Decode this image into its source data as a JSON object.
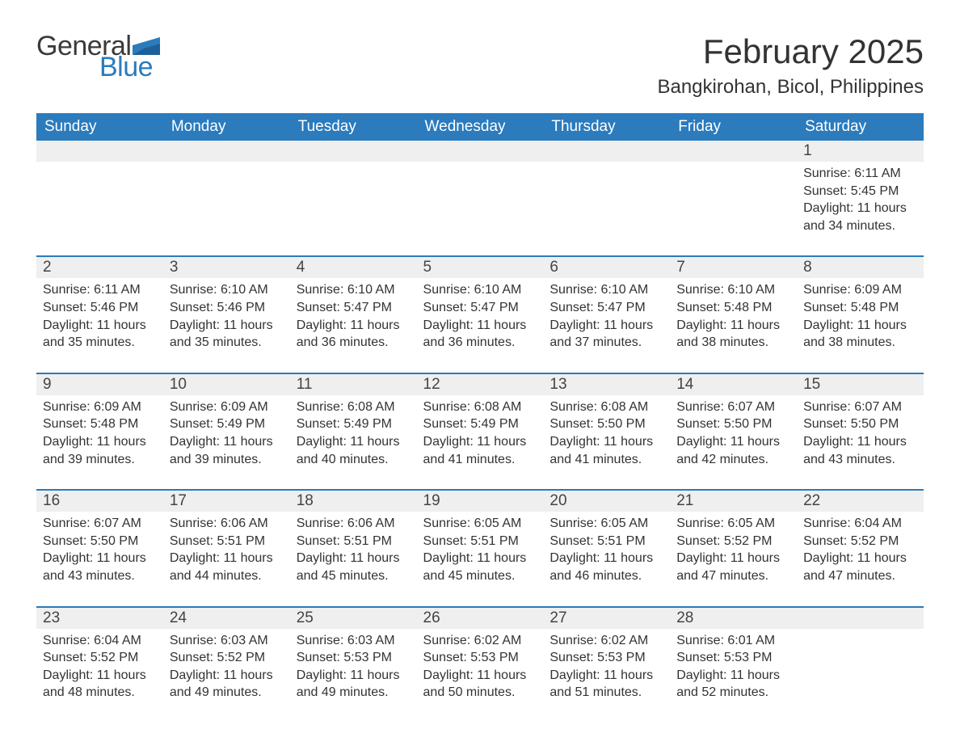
{
  "logo": {
    "general": "General",
    "blue": "Blue"
  },
  "header": {
    "month_title": "February 2025",
    "location": "Bangkirohan, Bicol, Philippines"
  },
  "colors": {
    "header_bg": "#2b7bbd",
    "header_text": "#ffffff",
    "daynum_bg": "#efefef",
    "divider": "#2b7bbd",
    "text": "#333333",
    "background": "#ffffff"
  },
  "day_headers": [
    "Sunday",
    "Monday",
    "Tuesday",
    "Wednesday",
    "Thursday",
    "Friday",
    "Saturday"
  ],
  "weeks": [
    [
      null,
      null,
      null,
      null,
      null,
      null,
      {
        "n": "1",
        "sr": "Sunrise: 6:11 AM",
        "ss": "Sunset: 5:45 PM",
        "dl": "Daylight: 11 hours and 34 minutes."
      }
    ],
    [
      {
        "n": "2",
        "sr": "Sunrise: 6:11 AM",
        "ss": "Sunset: 5:46 PM",
        "dl": "Daylight: 11 hours and 35 minutes."
      },
      {
        "n": "3",
        "sr": "Sunrise: 6:10 AM",
        "ss": "Sunset: 5:46 PM",
        "dl": "Daylight: 11 hours and 35 minutes."
      },
      {
        "n": "4",
        "sr": "Sunrise: 6:10 AM",
        "ss": "Sunset: 5:47 PM",
        "dl": "Daylight: 11 hours and 36 minutes."
      },
      {
        "n": "5",
        "sr": "Sunrise: 6:10 AM",
        "ss": "Sunset: 5:47 PM",
        "dl": "Daylight: 11 hours and 36 minutes."
      },
      {
        "n": "6",
        "sr": "Sunrise: 6:10 AM",
        "ss": "Sunset: 5:47 PM",
        "dl": "Daylight: 11 hours and 37 minutes."
      },
      {
        "n": "7",
        "sr": "Sunrise: 6:10 AM",
        "ss": "Sunset: 5:48 PM",
        "dl": "Daylight: 11 hours and 38 minutes."
      },
      {
        "n": "8",
        "sr": "Sunrise: 6:09 AM",
        "ss": "Sunset: 5:48 PM",
        "dl": "Daylight: 11 hours and 38 minutes."
      }
    ],
    [
      {
        "n": "9",
        "sr": "Sunrise: 6:09 AM",
        "ss": "Sunset: 5:48 PM",
        "dl": "Daylight: 11 hours and 39 minutes."
      },
      {
        "n": "10",
        "sr": "Sunrise: 6:09 AM",
        "ss": "Sunset: 5:49 PM",
        "dl": "Daylight: 11 hours and 39 minutes."
      },
      {
        "n": "11",
        "sr": "Sunrise: 6:08 AM",
        "ss": "Sunset: 5:49 PM",
        "dl": "Daylight: 11 hours and 40 minutes."
      },
      {
        "n": "12",
        "sr": "Sunrise: 6:08 AM",
        "ss": "Sunset: 5:49 PM",
        "dl": "Daylight: 11 hours and 41 minutes."
      },
      {
        "n": "13",
        "sr": "Sunrise: 6:08 AM",
        "ss": "Sunset: 5:50 PM",
        "dl": "Daylight: 11 hours and 41 minutes."
      },
      {
        "n": "14",
        "sr": "Sunrise: 6:07 AM",
        "ss": "Sunset: 5:50 PM",
        "dl": "Daylight: 11 hours and 42 minutes."
      },
      {
        "n": "15",
        "sr": "Sunrise: 6:07 AM",
        "ss": "Sunset: 5:50 PM",
        "dl": "Daylight: 11 hours and 43 minutes."
      }
    ],
    [
      {
        "n": "16",
        "sr": "Sunrise: 6:07 AM",
        "ss": "Sunset: 5:50 PM",
        "dl": "Daylight: 11 hours and 43 minutes."
      },
      {
        "n": "17",
        "sr": "Sunrise: 6:06 AM",
        "ss": "Sunset: 5:51 PM",
        "dl": "Daylight: 11 hours and 44 minutes."
      },
      {
        "n": "18",
        "sr": "Sunrise: 6:06 AM",
        "ss": "Sunset: 5:51 PM",
        "dl": "Daylight: 11 hours and 45 minutes."
      },
      {
        "n": "19",
        "sr": "Sunrise: 6:05 AM",
        "ss": "Sunset: 5:51 PM",
        "dl": "Daylight: 11 hours and 45 minutes."
      },
      {
        "n": "20",
        "sr": "Sunrise: 6:05 AM",
        "ss": "Sunset: 5:51 PM",
        "dl": "Daylight: 11 hours and 46 minutes."
      },
      {
        "n": "21",
        "sr": "Sunrise: 6:05 AM",
        "ss": "Sunset: 5:52 PM",
        "dl": "Daylight: 11 hours and 47 minutes."
      },
      {
        "n": "22",
        "sr": "Sunrise: 6:04 AM",
        "ss": "Sunset: 5:52 PM",
        "dl": "Daylight: 11 hours and 47 minutes."
      }
    ],
    [
      {
        "n": "23",
        "sr": "Sunrise: 6:04 AM",
        "ss": "Sunset: 5:52 PM",
        "dl": "Daylight: 11 hours and 48 minutes."
      },
      {
        "n": "24",
        "sr": "Sunrise: 6:03 AM",
        "ss": "Sunset: 5:52 PM",
        "dl": "Daylight: 11 hours and 49 minutes."
      },
      {
        "n": "25",
        "sr": "Sunrise: 6:03 AM",
        "ss": "Sunset: 5:53 PM",
        "dl": "Daylight: 11 hours and 49 minutes."
      },
      {
        "n": "26",
        "sr": "Sunrise: 6:02 AM",
        "ss": "Sunset: 5:53 PM",
        "dl": "Daylight: 11 hours and 50 minutes."
      },
      {
        "n": "27",
        "sr": "Sunrise: 6:02 AM",
        "ss": "Sunset: 5:53 PM",
        "dl": "Daylight: 11 hours and 51 minutes."
      },
      {
        "n": "28",
        "sr": "Sunrise: 6:01 AM",
        "ss": "Sunset: 5:53 PM",
        "dl": "Daylight: 11 hours and 52 minutes."
      },
      null
    ]
  ]
}
